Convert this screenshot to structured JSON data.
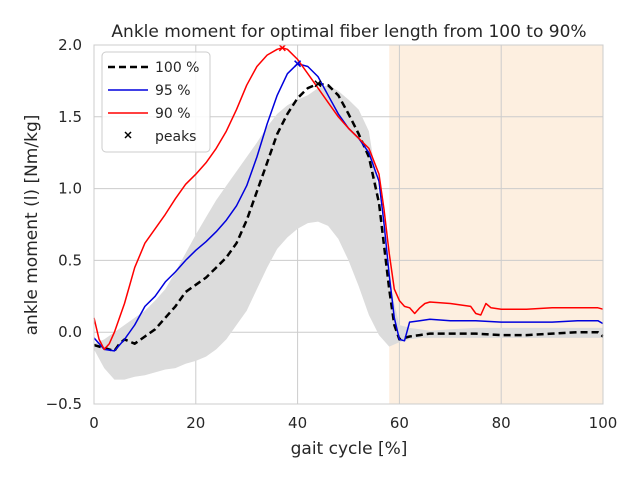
{
  "chart_data": {
    "type": "line",
    "title": "Ankle moment for optimal fiber length from 100 to 90%",
    "xlabel": "gait cycle [%]",
    "ylabel": "ankle moment (l) [Nm/kg]",
    "xlim": [
      0,
      100
    ],
    "ylim": [
      -0.5,
      2.0
    ],
    "xticks": [
      0,
      20,
      40,
      60,
      80,
      100
    ],
    "xtick_labels": [
      "0",
      "20",
      "40",
      "60",
      "80",
      "100"
    ],
    "yticks": [
      -0.5,
      0.0,
      0.5,
      1.0,
      1.5,
      2.0
    ],
    "ytick_labels": [
      "−0.5",
      "0.0",
      "0.5",
      "1.0",
      "1.5",
      "2.0"
    ],
    "grid": true,
    "legend_position": "top-left",
    "shaded_region": {
      "x_start": 58,
      "x_end": 100,
      "color": "#fdefe0"
    },
    "band": {
      "color": "#dcdcdc",
      "x": [
        0,
        2,
        4,
        6,
        8,
        10,
        12,
        14,
        16,
        18,
        20,
        22,
        24,
        26,
        28,
        30,
        32,
        34,
        36,
        38,
        40,
        42,
        44,
        46,
        48,
        50,
        52,
        54,
        56,
        58,
        60,
        62,
        64,
        66,
        70,
        75,
        80,
        85,
        90,
        95,
        100
      ],
      "upper": [
        -0.08,
        -0.05,
        0.0,
        0.05,
        0.1,
        0.15,
        0.22,
        0.3,
        0.42,
        0.55,
        0.68,
        0.8,
        0.92,
        1.02,
        1.12,
        1.22,
        1.32,
        1.43,
        1.52,
        1.58,
        1.62,
        1.65,
        1.7,
        1.72,
        1.68,
        1.62,
        1.55,
        1.4,
        0.95,
        0.35,
        0.05,
        0.03,
        0.02,
        0.01,
        0.02,
        0.03,
        0.03,
        0.03,
        0.03,
        0.03,
        0.03
      ],
      "lower": [
        -0.12,
        -0.25,
        -0.33,
        -0.33,
        -0.31,
        -0.3,
        -0.28,
        -0.26,
        -0.25,
        -0.22,
        -0.2,
        -0.17,
        -0.12,
        -0.05,
        0.05,
        0.15,
        0.3,
        0.45,
        0.58,
        0.66,
        0.72,
        0.76,
        0.77,
        0.74,
        0.65,
        0.5,
        0.32,
        0.12,
        -0.02,
        -0.1,
        -0.07,
        -0.05,
        -0.04,
        -0.04,
        -0.04,
        -0.04,
        -0.04,
        -0.04,
        -0.04,
        -0.04,
        -0.04
      ]
    },
    "series": [
      {
        "name": "100 %",
        "color": "#000000",
        "dash": "dashed",
        "x": [
          0,
          2,
          4,
          5,
          6,
          8,
          10,
          12,
          14,
          16,
          18,
          20,
          22,
          24,
          26,
          28,
          30,
          32,
          34,
          36,
          38,
          40,
          42,
          44,
          46,
          48,
          50,
          52,
          54,
          56,
          57,
          58,
          59,
          60,
          61,
          62,
          64,
          66,
          70,
          75,
          80,
          85,
          90,
          95,
          99,
          100
        ],
        "y": [
          -0.09,
          -0.11,
          -0.13,
          -0.08,
          -0.05,
          -0.08,
          -0.03,
          0.02,
          0.1,
          0.18,
          0.28,
          0.33,
          0.38,
          0.45,
          0.52,
          0.62,
          0.78,
          0.98,
          1.18,
          1.38,
          1.52,
          1.63,
          1.7,
          1.73,
          1.72,
          1.65,
          1.52,
          1.38,
          1.22,
          0.9,
          0.6,
          0.3,
          0.05,
          -0.05,
          -0.04,
          -0.03,
          -0.02,
          -0.01,
          -0.01,
          -0.01,
          -0.02,
          -0.02,
          -0.01,
          0.0,
          0.0,
          -0.03
        ]
      },
      {
        "name": "95 %",
        "color": "#0000dd",
        "dash": "solid",
        "x": [
          0,
          2,
          4,
          6,
          8,
          10,
          12,
          14,
          16,
          18,
          20,
          22,
          24,
          26,
          28,
          30,
          32,
          34,
          36,
          38,
          40,
          42,
          44,
          46,
          48,
          50,
          52,
          54,
          56,
          57,
          58,
          59,
          60,
          61,
          62,
          64,
          66,
          70,
          75,
          80,
          85,
          90,
          95,
          99,
          100
        ],
        "y": [
          -0.04,
          -0.12,
          -0.13,
          -0.05,
          0.05,
          0.18,
          0.25,
          0.35,
          0.42,
          0.5,
          0.57,
          0.63,
          0.7,
          0.78,
          0.88,
          1.02,
          1.22,
          1.45,
          1.65,
          1.8,
          1.87,
          1.85,
          1.78,
          1.65,
          1.52,
          1.42,
          1.35,
          1.25,
          1.05,
          0.75,
          0.4,
          0.1,
          -0.05,
          -0.06,
          0.07,
          0.08,
          0.09,
          0.08,
          0.08,
          0.07,
          0.07,
          0.07,
          0.08,
          0.08,
          0.06
        ]
      },
      {
        "name": "90 %",
        "color": "#ff0000",
        "dash": "solid",
        "x": [
          0,
          1,
          2,
          3,
          4,
          6,
          8,
          10,
          12,
          14,
          16,
          18,
          20,
          22,
          24,
          26,
          28,
          30,
          32,
          34,
          36,
          37,
          38,
          40,
          42,
          44,
          46,
          48,
          50,
          52,
          54,
          56,
          57,
          58,
          59,
          60,
          61,
          62,
          63,
          64,
          65,
          66,
          70,
          74,
          75,
          76,
          77,
          78,
          80,
          85,
          90,
          95,
          99,
          100
        ],
        "y": [
          0.1,
          -0.05,
          -0.12,
          -0.08,
          0.0,
          0.2,
          0.45,
          0.62,
          0.72,
          0.82,
          0.93,
          1.03,
          1.1,
          1.18,
          1.28,
          1.4,
          1.55,
          1.72,
          1.85,
          1.93,
          1.97,
          1.98,
          1.97,
          1.9,
          1.8,
          1.7,
          1.6,
          1.5,
          1.42,
          1.35,
          1.28,
          1.1,
          0.85,
          0.55,
          0.3,
          0.22,
          0.18,
          0.17,
          0.13,
          0.17,
          0.2,
          0.21,
          0.2,
          0.18,
          0.13,
          0.12,
          0.2,
          0.17,
          0.16,
          0.16,
          0.17,
          0.17,
          0.17,
          0.16
        ]
      }
    ],
    "peaks": {
      "name": "peaks",
      "marker": "x",
      "points": [
        {
          "x": 37,
          "y": 1.98,
          "color": "#ff0000"
        },
        {
          "x": 40,
          "y": 1.87,
          "color": "#0000dd"
        },
        {
          "x": 44,
          "y": 1.73,
          "color": "#000000"
        }
      ]
    }
  }
}
